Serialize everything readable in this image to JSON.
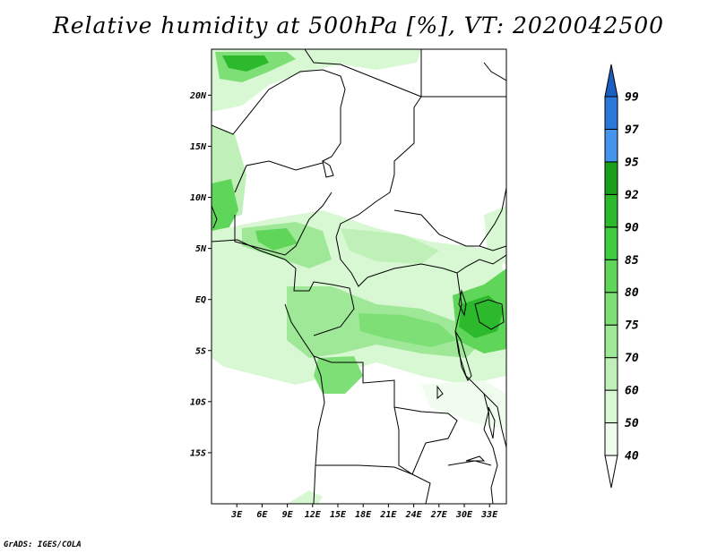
{
  "title": "Relative humidity at 500hPa [%], VT: 2020042500",
  "credit": "GrADS: IGES/COLA",
  "lat_axis": {
    "labels": [
      "20N",
      "15N",
      "10N",
      "5N",
      "EQ",
      "5S",
      "10S",
      "15S"
    ],
    "values": [
      20,
      15,
      10,
      5,
      0,
      -5,
      -10,
      -15
    ],
    "range": [
      -20,
      24.5
    ]
  },
  "lon_axis": {
    "labels": [
      "3E",
      "6E",
      "9E",
      "12E",
      "15E",
      "18E",
      "21E",
      "24E",
      "27E",
      "30E",
      "33E"
    ],
    "values": [
      3,
      6,
      9,
      12,
      15,
      18,
      21,
      24,
      27,
      30,
      33
    ],
    "range": [
      0,
      35
    ]
  },
  "colorbar": {
    "levels": [
      "40",
      "50",
      "60",
      "70",
      "75",
      "80",
      "85",
      "90",
      "92",
      "95",
      "97",
      "99"
    ],
    "colors": [
      "#f0fcee",
      "#d8f7d3",
      "#bff0b8",
      "#9fe897",
      "#7fdf77",
      "#5fd65a",
      "#3fcc3f",
      "#2cb92c",
      "#1a9f1a",
      "#4394ea",
      "#2a78d8",
      "#1c5fc2"
    ],
    "over_color": "#1c5fc2",
    "under_color": "#ffffff"
  },
  "colors": {
    "border": "#000000",
    "background": "#ffffff"
  }
}
